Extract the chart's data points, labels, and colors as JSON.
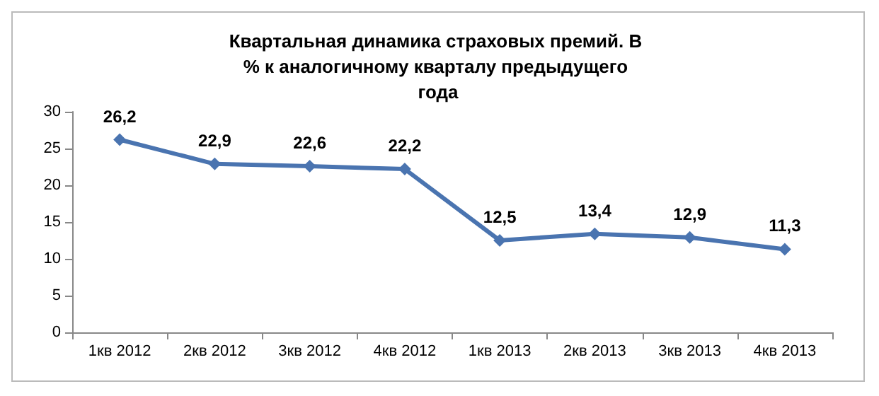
{
  "chart_data": {
    "type": "line",
    "title": "Квартальная динамика страховых премий. В % к аналогичному кварталу предыдущего года",
    "categories": [
      "1кв 2012",
      "2кв 2012",
      "3кв 2012",
      "4кв 2012",
      "1кв 2013",
      "2кв 2013",
      "3кв 2013",
      "4кв 2013"
    ],
    "series": [
      {
        "color": "#4a74b0",
        "values": [
          26.2,
          22.9,
          22.6,
          22.2,
          12.5,
          13.4,
          12.9,
          11.3
        ],
        "value_labels": [
          "26,2",
          "22,9",
          "22,6",
          "22,2",
          "12,5",
          "13,4",
          "12,9",
          "11,3"
        ]
      }
    ],
    "ylim": [
      0,
      30
    ],
    "yticks": [
      0,
      5,
      10,
      15,
      20,
      25,
      30
    ],
    "marker": "diamond",
    "line_style": "solid",
    "grid": false
  }
}
